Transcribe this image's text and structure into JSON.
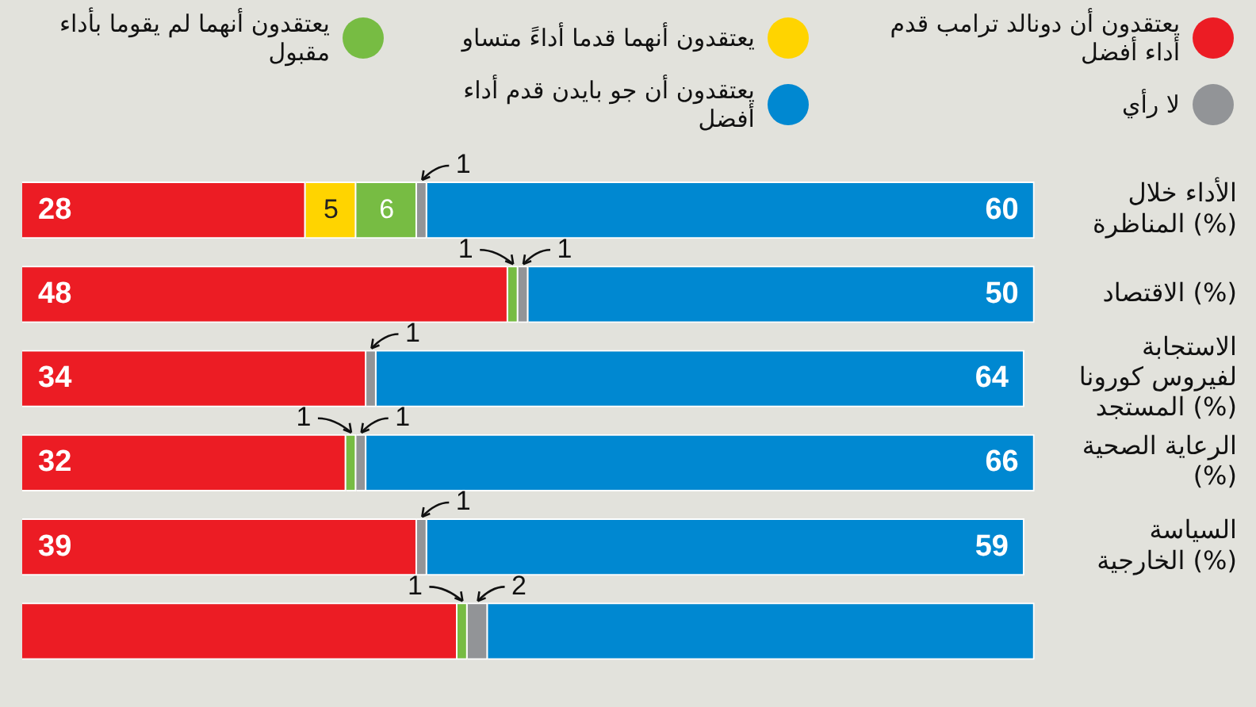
{
  "chart_data": {
    "type": "bar",
    "orientation": "horizontal",
    "stacked": true,
    "categories": [
      "الأداء خلال المناظرة (%)",
      "الاقتصاد (%)",
      "الاستجابة لفيروس كورونا المستجد (%)",
      "الرعاية الصحية (%)",
      "السياسة الخارجية (%)",
      null
    ],
    "series": [
      {
        "name": "يعتقدون أن دونالد ترامب قدم أداء أفضل",
        "color": "#ec1c24",
        "values": [
          28,
          48,
          34,
          32,
          39,
          43
        ],
        "value_labels": [
          "28",
          "48",
          "34",
          "32",
          "39",
          null
        ]
      },
      {
        "name": "يعتقدون أنهما قدما أداءً متساو",
        "color": "#ffd400",
        "values": [
          5,
          null,
          null,
          null,
          null,
          null
        ],
        "value_labels": [
          "5",
          null,
          null,
          null,
          null,
          null
        ]
      },
      {
        "name": "يعتقدون أنهما لم يقوما بأداء مقبول",
        "color": "#77bc43",
        "values": [
          6,
          1,
          null,
          1,
          null,
          1
        ],
        "value_labels": [
          "6",
          "1",
          null,
          "1",
          null,
          "1"
        ]
      },
      {
        "name": "لا رأي",
        "color": "#929497",
        "values": [
          1,
          1,
          1,
          1,
          1,
          2
        ],
        "value_labels": [
          "1",
          "1",
          "1",
          "1",
          "1",
          "2"
        ]
      },
      {
        "name": "يعتقدون أن جو بايدن قدم أداء أفضل",
        "color": "#0088d1",
        "values": [
          60,
          50,
          64,
          66,
          59,
          54
        ],
        "value_labels": [
          "60",
          "50",
          "64",
          "66",
          "59",
          null
        ]
      }
    ],
    "xlim": [
      0,
      100
    ],
    "tick_labels": "y",
    "grid": false,
    "legend": "top"
  }
}
